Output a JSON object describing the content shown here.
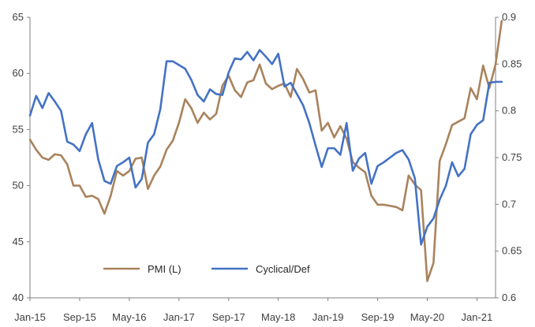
{
  "chart_data": {
    "type": "line",
    "x_tick_labels": [
      "Jan-15",
      "Sep-15",
      "May-16",
      "Jan-17",
      "Sep-17",
      "May-18",
      "Jan-19",
      "Sep-19",
      "May-20",
      "Jan-21"
    ],
    "x_start": "2015-01",
    "x_end": "2021-03",
    "y_left": {
      "lim": [
        40,
        65
      ],
      "ticks": [
        40,
        45,
        50,
        55,
        60,
        65
      ]
    },
    "y_right": {
      "lim": [
        0.6,
        0.9
      ],
      "ticks": [
        "0.6",
        "0.65",
        "0.7",
        "0.75",
        "0.8",
        "0.85",
        "0.9"
      ]
    },
    "grid": false,
    "legend_position": "bottom-left",
    "series": [
      {
        "name": "PMI (L)",
        "axis": "left",
        "color": "#a9835d",
        "values": [
          54.1,
          53.2,
          52.5,
          52.3,
          52.8,
          52.7,
          51.9,
          50.0,
          50.0,
          49.0,
          49.1,
          48.8,
          47.5,
          49.1,
          51.3,
          50.9,
          51.3,
          52.4,
          52.5,
          49.7,
          50.9,
          51.7,
          53.2,
          54.0,
          55.6,
          57.7,
          56.9,
          55.6,
          56.5,
          55.9,
          56.4,
          58.9,
          59.8,
          58.5,
          57.9,
          59.2,
          59.4,
          60.8,
          59.1,
          58.6,
          58.9,
          59.1,
          57.9,
          60.4,
          59.5,
          58.3,
          58.5,
          54.9,
          55.6,
          54.3,
          55.3,
          54.2,
          52.1,
          51.6,
          51.2,
          49.1,
          48.3,
          48.3,
          48.2,
          48.1,
          47.8,
          50.9,
          50.1,
          49.6,
          41.5,
          43.1,
          52.2,
          53.7,
          55.4,
          55.7,
          56.0,
          58.7,
          57.7,
          60.7,
          58.7,
          60.8,
          64.7
        ]
      },
      {
        "name": "Cyclical/Def",
        "axis": "right",
        "color": "#4472c4",
        "values": [
          0.795,
          0.816,
          0.803,
          0.819,
          0.81,
          0.8,
          0.767,
          0.764,
          0.757,
          0.775,
          0.787,
          0.748,
          0.725,
          0.722,
          0.741,
          0.745,
          0.75,
          0.718,
          0.727,
          0.766,
          0.775,
          0.802,
          0.853,
          0.853,
          0.849,
          0.845,
          0.833,
          0.817,
          0.81,
          0.823,
          0.818,
          0.817,
          0.841,
          0.856,
          0.855,
          0.863,
          0.854,
          0.865,
          0.858,
          0.85,
          0.861,
          0.826,
          0.83,
          0.818,
          0.806,
          0.787,
          0.763,
          0.74,
          0.76,
          0.76,
          0.753,
          0.787,
          0.736,
          0.749,
          0.755,
          0.722,
          0.741,
          0.745,
          0.75,
          0.755,
          0.758,
          0.748,
          0.728,
          0.657,
          0.676,
          0.685,
          0.705,
          0.72,
          0.745,
          0.73,
          0.738,
          0.775,
          0.785,
          0.79,
          0.83,
          0.831,
          0.831
        ]
      }
    ]
  }
}
